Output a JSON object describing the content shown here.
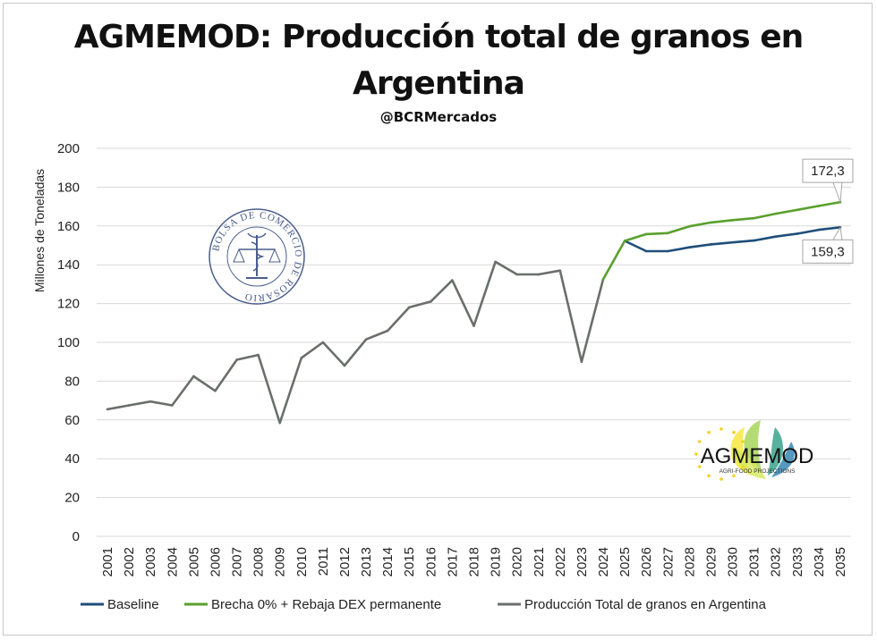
{
  "chart_data": {
    "type": "line",
    "title_line1": "AGMEMOD: Producción total de granos en",
    "title_line2": "Argentina",
    "subtitle": "@BCRMercados",
    "ylabel": "Millones de Toneladas",
    "ylim": [
      0,
      200
    ],
    "yticks": [
      0,
      20,
      40,
      60,
      80,
      100,
      120,
      140,
      160,
      180,
      200
    ],
    "grid": true,
    "legend_position": "bottom",
    "categories": [
      "2001",
      "2002",
      "2003",
      "2004",
      "2005",
      "2006",
      "2007",
      "2008",
      "2009",
      "2010",
      "2011",
      "2012",
      "2013",
      "2014",
      "2015",
      "2016",
      "2017",
      "2018",
      "2019",
      "2020",
      "2021",
      "2022",
      "2023",
      "2024",
      "2025",
      "2026",
      "2027",
      "2028",
      "2029",
      "2030",
      "2031",
      "2032",
      "2033",
      "2034",
      "2035"
    ],
    "series": [
      {
        "name": "Baseline",
        "color": "#1f4e79",
        "values": [
          null,
          null,
          null,
          null,
          null,
          null,
          null,
          null,
          null,
          null,
          null,
          null,
          null,
          null,
          null,
          null,
          null,
          null,
          null,
          null,
          null,
          null,
          null,
          null,
          152.3,
          147,
          147,
          149,
          150.5,
          151.5,
          152.5,
          154.5,
          156,
          158,
          159.3
        ]
      },
      {
        "name": "Brecha 0% + Rebaja DEX permanente",
        "color": "#5aa02c",
        "values": [
          null,
          null,
          null,
          null,
          null,
          null,
          null,
          null,
          null,
          null,
          null,
          null,
          null,
          null,
          null,
          null,
          null,
          null,
          null,
          null,
          null,
          null,
          null,
          132.5,
          152.3,
          155.8,
          156.3,
          159.8,
          161.8,
          163,
          164,
          166.3,
          168.3,
          170.3,
          172.3
        ]
      },
      {
        "name": "Producción Total de granos en Argentina",
        "color": "#6a6f6b",
        "values": [
          65.5,
          67.5,
          69.5,
          67.5,
          82.5,
          75,
          91,
          93.5,
          58.5,
          92,
          100,
          88,
          101.5,
          106,
          118,
          121,
          132,
          108.5,
          141.5,
          135,
          135,
          137,
          90,
          132.5,
          null,
          null,
          null,
          null,
          null,
          null,
          null,
          null,
          null,
          null,
          null
        ]
      }
    ],
    "annotations": [
      {
        "text": "172,3",
        "series": "Brecha 0% + Rebaja DEX permanente",
        "x": "2035",
        "y": 172.3
      },
      {
        "text": "159,3",
        "series": "Baseline",
        "x": "2035",
        "y": 159.3
      }
    ]
  },
  "logos": {
    "bcr_seal_text": "BOLSA DE COMERCIO DE ROSARIO",
    "agmemod_name": "AGMEMOD",
    "agmemod_tagline": "AGRI-FOOD PROJECTIONS"
  }
}
